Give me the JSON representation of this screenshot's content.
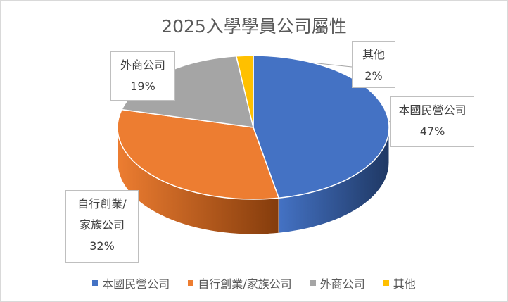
{
  "chart_data": {
    "type": "pie",
    "title": "2025入學學員公司屬性",
    "style": "3d-pie",
    "legend_position": "bottom",
    "slices": [
      {
        "label": "本國民營公司",
        "value": 47,
        "display_value": "47%",
        "color": "#4472c4",
        "dark": "#1f3864"
      },
      {
        "label": "自行創業/家族公司",
        "value": 32,
        "display_value": "32%",
        "color": "#ed7d31",
        "dark": "#843c0c"
      },
      {
        "label": "外商公司",
        "value": 19,
        "display_value": "19%",
        "color": "#a5a5a5",
        "dark": "#595959"
      },
      {
        "label": "其他",
        "value": 2,
        "display_value": "2%",
        "color": "#ffc000",
        "dark": "#7f6000"
      }
    ]
  },
  "callouts": {
    "domestic": {
      "name": "本國民營公司",
      "pct": "47%"
    },
    "startup": {
      "name_line1": "自行創業/",
      "name_line2": "家族公司",
      "pct": "32%"
    },
    "foreign": {
      "name": "外商公司",
      "pct": "19%"
    },
    "other": {
      "name": "其他",
      "pct": "2%"
    }
  }
}
